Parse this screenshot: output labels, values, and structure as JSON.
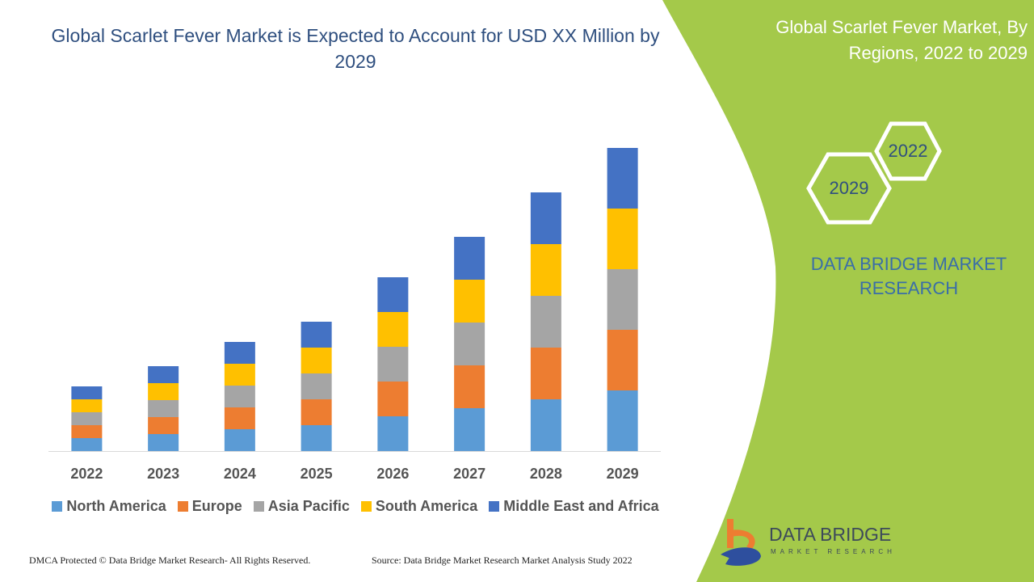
{
  "chart_data": {
    "type": "bar",
    "stacked": true,
    "title": "Global Scarlet Fever Market is Expected to Account for USD XX Million by 2029",
    "categories": [
      "2022",
      "2023",
      "2024",
      "2025",
      "2026",
      "2027",
      "2028",
      "2029"
    ],
    "series": [
      {
        "name": "North America",
        "color": "#5b9bd5",
        "values": [
          16,
          21,
          27,
          32,
          43,
          53,
          64,
          75
        ]
      },
      {
        "name": "Europe",
        "color": "#ed7d31",
        "values": [
          16,
          21,
          27,
          32,
          43,
          53,
          64,
          75
        ]
      },
      {
        "name": "Asia Pacific",
        "color": "#a5a5a5",
        "values": [
          16,
          21,
          27,
          32,
          43,
          53,
          64,
          75
        ]
      },
      {
        "name": "South America",
        "color": "#ffc000",
        "values": [
          16,
          21,
          27,
          32,
          43,
          53,
          64,
          75
        ]
      },
      {
        "name": "Middle East and Africa",
        "color": "#4472c4",
        "values": [
          16,
          21,
          27,
          32,
          43,
          53,
          64,
          75
        ]
      }
    ],
    "ylim": [
      0,
      375
    ],
    "y_axis_shown": false,
    "grid": false,
    "legend": "bottom"
  },
  "panel": {
    "title": "Global Scarlet Fever Market, By Regions, 2022 to 2029",
    "hex_top": "2022",
    "hex_bottom": "2029",
    "brand": "DATA BRIDGE MARKET RESEARCH",
    "color": "#a4c94a"
  },
  "footer": {
    "left": "DMCA Protected © Data Bridge Market Research- All Rights Reserved.",
    "right": "Source: Data Bridge Market Research Market Analysis Study 2022"
  },
  "logo": {
    "name": "DATA BRIDGE",
    "sub": "MARKET RESEARCH"
  }
}
